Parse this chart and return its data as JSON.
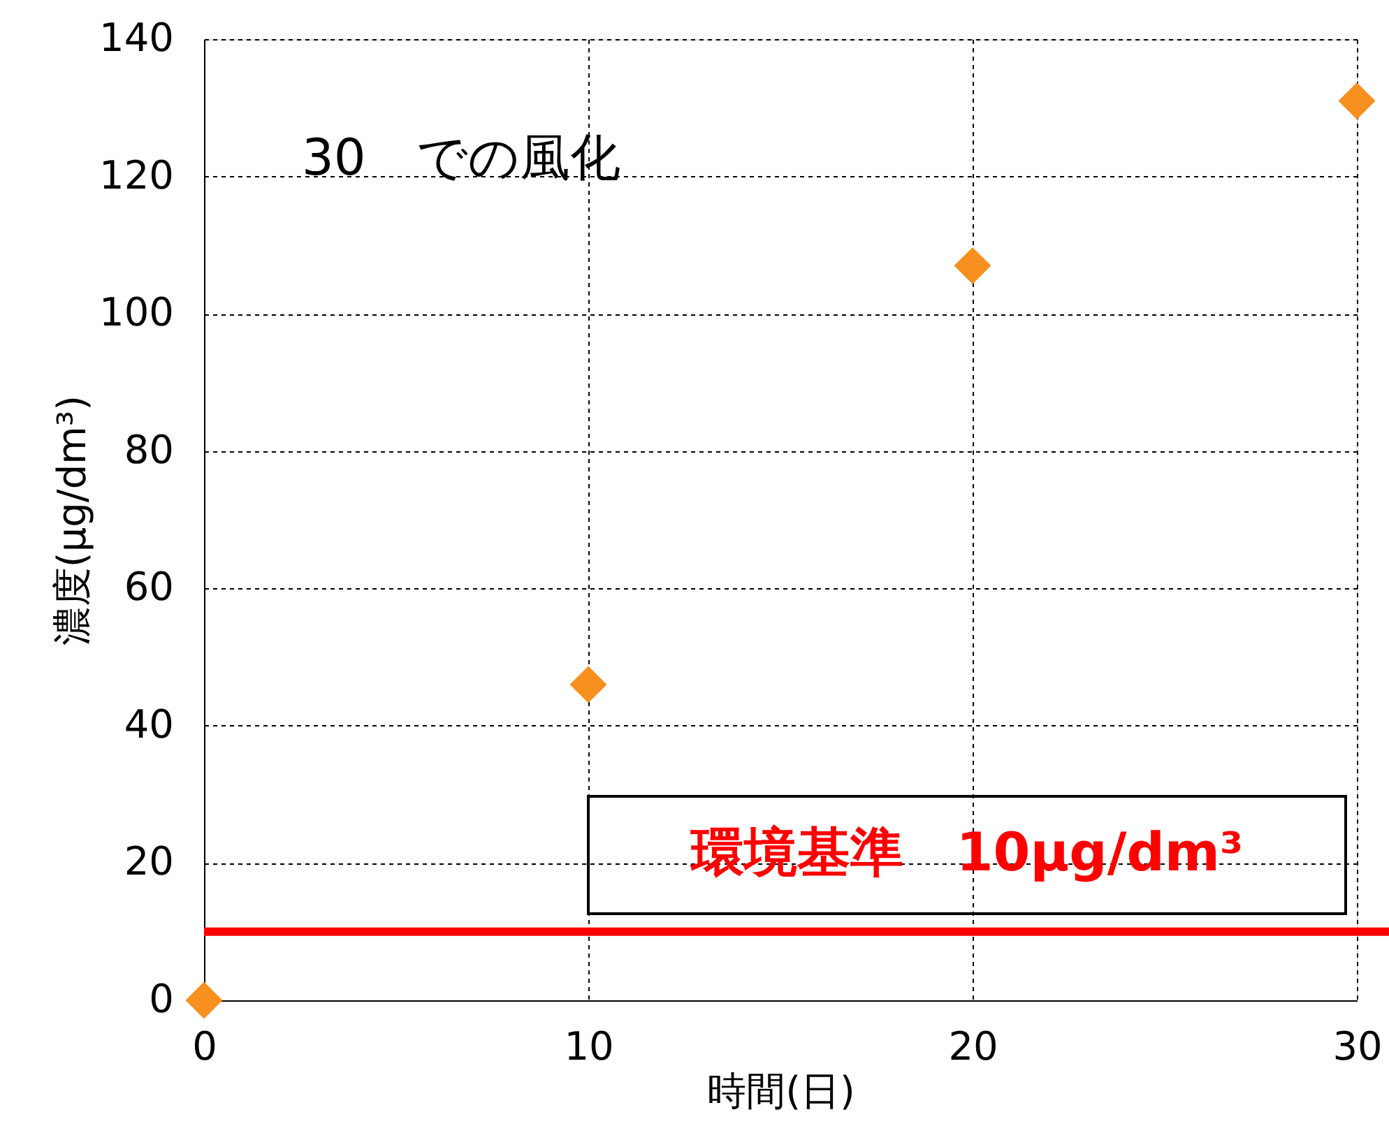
{
  "chart_data": {
    "type": "scatter",
    "xlabel": "時間(日)",
    "ylabel": "濃度(μg/dm³)",
    "annotations": [
      "30　での風化"
    ],
    "x": [
      0,
      10,
      20,
      30
    ],
    "series": [
      {
        "color": "#f7901e",
        "values": [
          0,
          46,
          107,
          131
        ]
      }
    ],
    "xlim": [
      0,
      30
    ],
    "xticks": [
      0,
      10,
      20,
      30
    ],
    "ylim": [
      0,
      140
    ],
    "yticks": [
      0,
      20,
      40,
      60,
      80,
      100,
      120,
      140
    ],
    "ref_lines": [
      {
        "axis": "y",
        "value": 10,
        "label": "環境基準　10μg/dm³",
        "color": "#ff0000"
      }
    ],
    "grid": true,
    "marker": "diamond"
  }
}
